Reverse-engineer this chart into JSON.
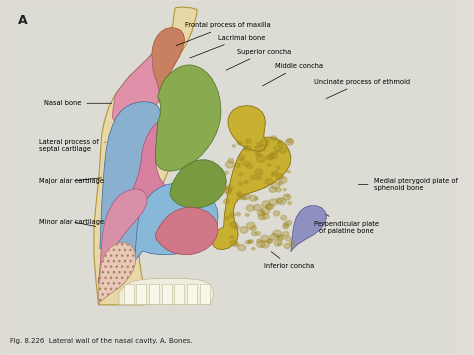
{
  "title": "A",
  "caption": "Fig. 8.226  Lateral wall of the nasal cavity. A. Bones.",
  "bg_outer": "#e8e8e0",
  "bg_inner": "#d4dde8",
  "figsize": [
    4.74,
    3.55
  ],
  "dpi": 100,
  "annotations": [
    {
      "text": "Frontal process of maxilla",
      "txy": [
        0.5,
        0.93
      ],
      "axy": [
        0.38,
        0.87
      ],
      "ha": "center"
    },
    {
      "text": "Lacrimal bone",
      "txy": [
        0.53,
        0.895
      ],
      "axy": [
        0.41,
        0.835
      ],
      "ha": "center"
    },
    {
      "text": "Superior concha",
      "txy": [
        0.58,
        0.855
      ],
      "axy": [
        0.49,
        0.8
      ],
      "ha": "center"
    },
    {
      "text": "Middle concha",
      "txy": [
        0.655,
        0.815
      ],
      "axy": [
        0.57,
        0.755
      ],
      "ha": "center"
    },
    {
      "text": "Uncinate process of ethmoid",
      "txy": [
        0.795,
        0.77
      ],
      "axy": [
        0.71,
        0.72
      ],
      "ha": "center"
    },
    {
      "text": "Nasal bone",
      "txy": [
        0.095,
        0.71
      ],
      "axy": [
        0.25,
        0.71
      ],
      "ha": "left"
    },
    {
      "text": "Lateral process of\nseptal cartilage",
      "txy": [
        0.085,
        0.59
      ],
      "axy": [
        0.23,
        0.6
      ],
      "ha": "left"
    },
    {
      "text": "Major alar cartilage",
      "txy": [
        0.085,
        0.49
      ],
      "axy": [
        0.228,
        0.5
      ],
      "ha": "left"
    },
    {
      "text": "Minor alar cartilage",
      "txy": [
        0.085,
        0.375
      ],
      "axy": [
        0.215,
        0.36
      ],
      "ha": "left"
    },
    {
      "text": "Medial pterygoid plate of\nsphenoid bone",
      "txy": [
        0.82,
        0.48
      ],
      "axy": [
        0.78,
        0.48
      ],
      "ha": "left"
    },
    {
      "text": "Perpendicular plate\nof palatine bone",
      "txy": [
        0.76,
        0.36
      ],
      "axy": [
        0.71,
        0.4
      ],
      "ha": "center"
    },
    {
      "text": "Inferior concha",
      "txy": [
        0.635,
        0.25
      ],
      "axy": [
        0.59,
        0.295
      ],
      "ha": "center"
    }
  ]
}
